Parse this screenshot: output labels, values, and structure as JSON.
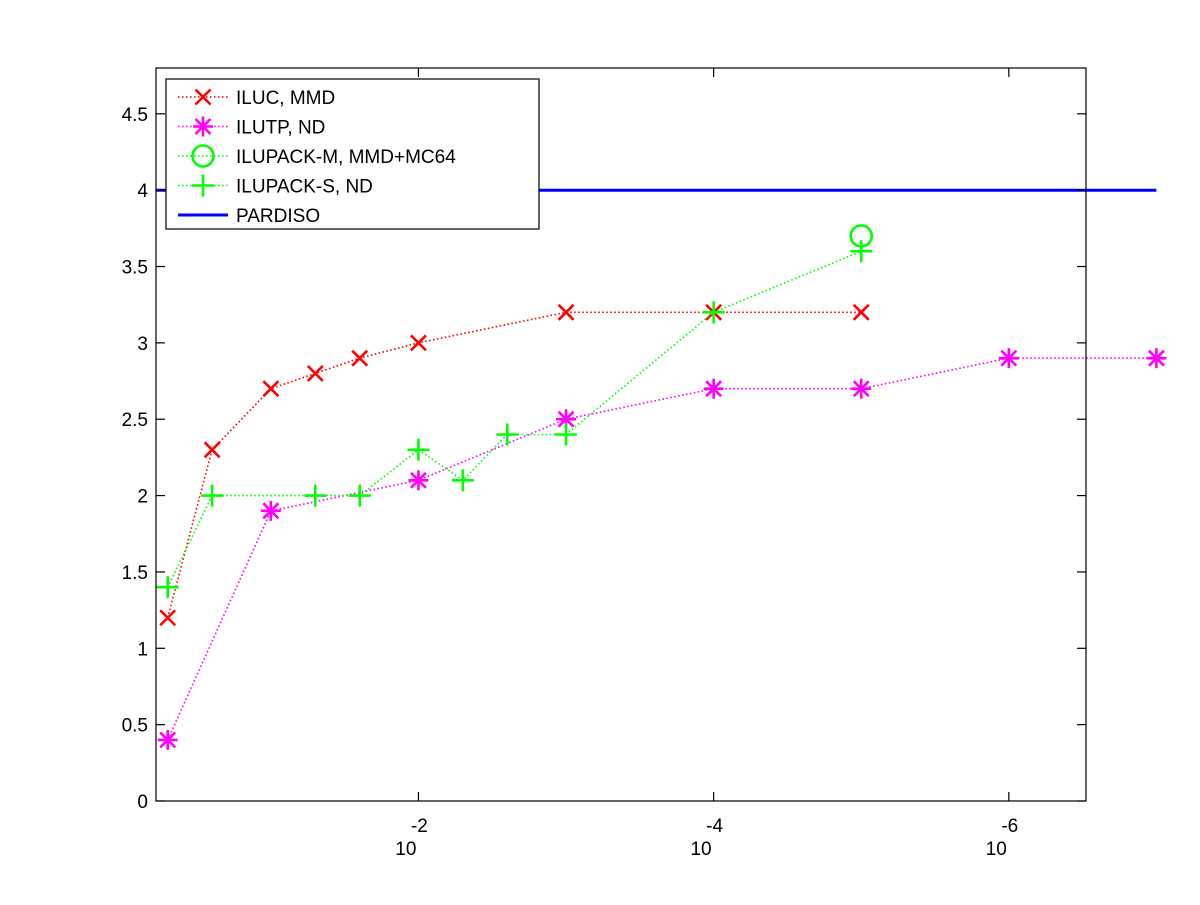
{
  "chart_data": {
    "type": "line",
    "title": "",
    "xlabel": "",
    "ylabel": "",
    "x_scale": "log",
    "x_direction": "reversed",
    "xlim": [
      0.6,
      3e-07
    ],
    "ylim": [
      0,
      4.8
    ],
    "grid": false,
    "legend_position": "top-left",
    "y_ticks": [
      "0",
      "0.5",
      "1",
      "1.5",
      "2",
      "2.5",
      "3",
      "3.5",
      "4",
      "4.5"
    ],
    "x_ticks": [
      {
        "value": 0.01,
        "base": "10",
        "exponent": "-2"
      },
      {
        "value": 0.0001,
        "base": "10",
        "exponent": "-4"
      },
      {
        "value": 1e-06,
        "base": "10",
        "exponent": "-6"
      }
    ],
    "series": [
      {
        "name": "ILUC, MMD",
        "color": "#ff0000",
        "marker": "x-mark",
        "line_style": "dotted",
        "points": [
          {
            "x": 0.5,
            "y": 1.2
          },
          {
            "x": 0.25,
            "y": 2.3
          },
          {
            "x": 0.1,
            "y": 2.7
          },
          {
            "x": 0.05,
            "y": 2.8
          },
          {
            "x": 0.025,
            "y": 2.9
          },
          {
            "x": 0.01,
            "y": 3.0
          },
          {
            "x": 0.001,
            "y": 3.2
          },
          {
            "x": 0.0001,
            "y": 3.2
          },
          {
            "x": 1e-05,
            "y": 3.2
          }
        ]
      },
      {
        "name": "ILUTP,  ND",
        "color": "#ff00ff",
        "marker": "asterisk",
        "line_style": "dotted",
        "points": [
          {
            "x": 0.5,
            "y": 0.4
          },
          {
            "x": 0.1,
            "y": 1.9
          },
          {
            "x": 0.01,
            "y": 2.1
          },
          {
            "x": 0.001,
            "y": 2.5
          },
          {
            "x": 0.0001,
            "y": 2.7
          },
          {
            "x": 1e-05,
            "y": 2.7
          },
          {
            "x": 1e-06,
            "y": 2.9
          },
          {
            "x": 1e-07,
            "y": 2.9
          }
        ]
      },
      {
        "name": "ILUPACK-M, MMD+MC64",
        "color": "#00ff00",
        "marker": "circle",
        "line_style": "dotted",
        "points": [
          {
            "x": 1e-05,
            "y": 3.7
          }
        ]
      },
      {
        "name": "ILUPACK-S, ND",
        "color": "#00ff00",
        "marker": "plus",
        "line_style": "dotted",
        "points": [
          {
            "x": 0.5,
            "y": 1.4
          },
          {
            "x": 0.25,
            "y": 2.0
          },
          {
            "x": 0.05,
            "y": 2.0
          },
          {
            "x": 0.025,
            "y": 2.0
          },
          {
            "x": 0.01,
            "y": 2.3
          },
          {
            "x": 0.005,
            "y": 2.1
          },
          {
            "x": 0.0025,
            "y": 2.4
          },
          {
            "x": 0.001,
            "y": 2.4
          },
          {
            "x": 0.0001,
            "y": 3.2
          },
          {
            "x": 1e-05,
            "y": 3.6
          }
        ]
      },
      {
        "name": "PARDISO",
        "color": "#0000ff",
        "marker": "none",
        "line_style": "solid",
        "points": [
          {
            "x": 0.6,
            "y": 4.0
          },
          {
            "x": 1e-07,
            "y": 4.0
          }
        ]
      }
    ]
  }
}
